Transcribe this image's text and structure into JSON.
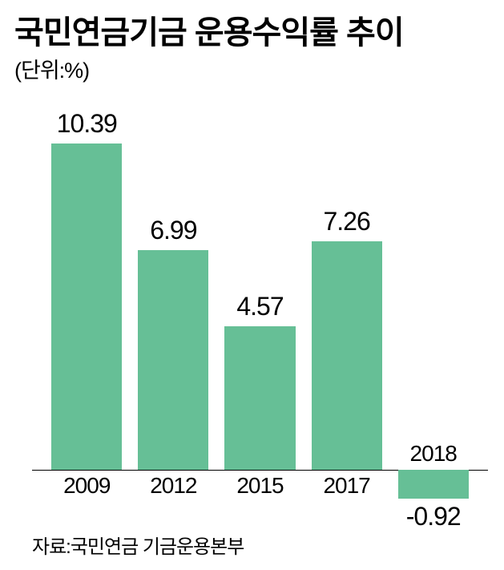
{
  "title": "국민연금기금 운용수익률 추이",
  "unit": "(단위:%)",
  "source": "자료:국민연금 기금운용본부",
  "chart": {
    "type": "bar",
    "categories": [
      "2009",
      "2012",
      "2015",
      "2017",
      "2018"
    ],
    "values": [
      10.39,
      6.99,
      4.57,
      7.26,
      -0.92
    ],
    "value_labels": [
      "10.39",
      "6.99",
      "4.57",
      "7.26",
      "-0.92"
    ],
    "bar_color": "#66bf96",
    "background_color": "#ffffff",
    "baseline_color": "#000000",
    "ymin": -1.5,
    "ymax": 11.5,
    "bar_width_pct": 15.5,
    "bar_gap_pct": 3.5,
    "title_fontsize": 40,
    "unit_fontsize": 27,
    "value_fontsize": 32,
    "xlabel_fontsize": 28,
    "source_fontsize": 24
  }
}
